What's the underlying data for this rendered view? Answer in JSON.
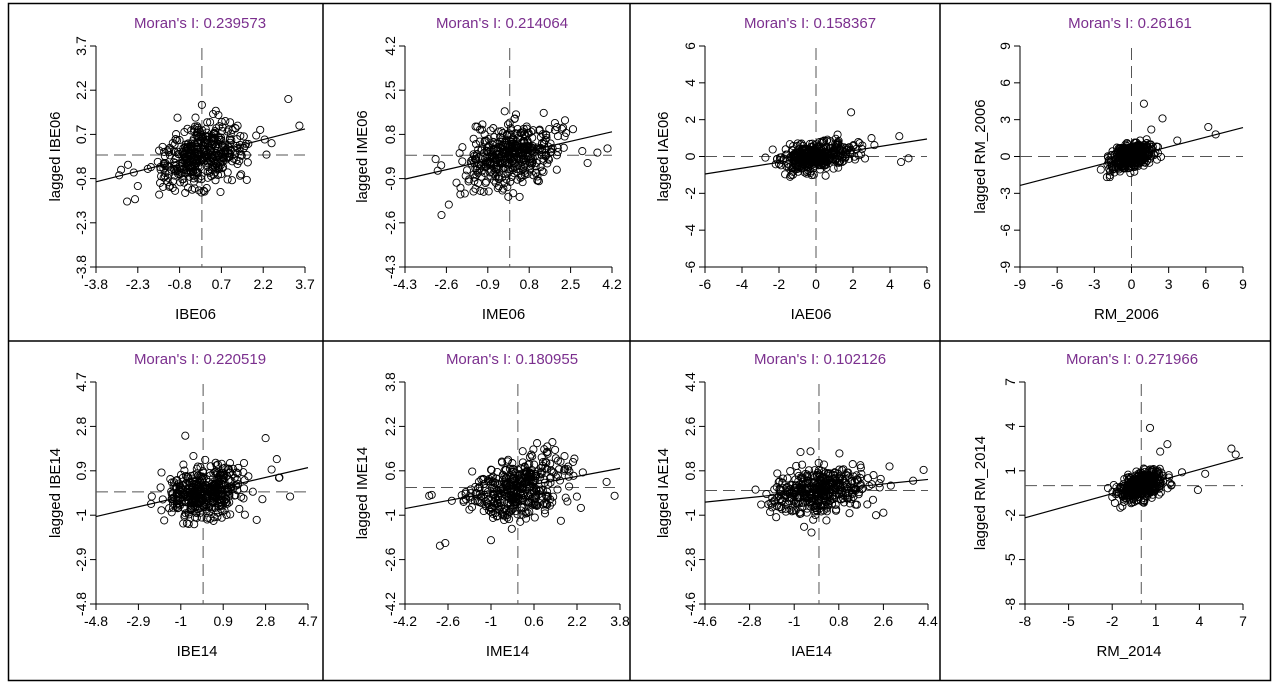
{
  "chart_data": [
    {
      "type": "scatter",
      "title": "Moran's I: 0.239573",
      "xlabel": "IBE06",
      "ylabel": "lagged IBE06",
      "xlim": [
        -3.8,
        3.7
      ],
      "ylim": [
        -3.8,
        3.7
      ],
      "xticks": [
        "-3.8",
        "-2.3",
        "-0.8",
        "0.7",
        "2.2",
        "3.7"
      ],
      "yticks": [
        "-3.8",
        "-2.3",
        "-0.8",
        "0.7",
        "2.2",
        "3.7"
      ],
      "slope": 0.239573,
      "spread": [
        0.8,
        0.5
      ],
      "outliers": [
        [
          -2.9,
          -0.5
        ],
        [
          -2.4,
          -1.5
        ],
        [
          0.0,
          1.7
        ],
        [
          0.5,
          1.5
        ],
        [
          3.1,
          1.9
        ],
        [
          2.5,
          0.4
        ],
        [
          3.5,
          1.0
        ]
      ],
      "color_title": "#7b2f8e"
    },
    {
      "type": "scatter",
      "title": "Moran's I: 0.214064",
      "xlabel": "IME06",
      "ylabel": "lagged IME06",
      "xlim": [
        -4.3,
        4.2
      ],
      "ylim": [
        -4.3,
        4.2
      ],
      "xticks": [
        "-4.3",
        "-2.6",
        "-0.9",
        "0.8",
        "2.5",
        "4.2"
      ],
      "yticks": [
        "-4.3",
        "-2.6",
        "-0.9",
        "0.8",
        "2.5",
        "4.2"
      ],
      "slope": 0.214064,
      "spread": [
        1.0,
        0.6
      ],
      "outliers": [
        [
          -2.8,
          -2.3
        ],
        [
          -2.5,
          -1.9
        ],
        [
          -1.4,
          1.1
        ],
        [
          2.6,
          1.0
        ],
        [
          3.2,
          -0.3
        ],
        [
          3.6,
          0.1
        ],
        [
          1.2,
          -1.0
        ]
      ],
      "color_title": "#7b2f8e"
    },
    {
      "type": "scatter",
      "title": "Moran's I: 0.158367",
      "xlabel": "IAE06",
      "ylabel": "lagged IAE06",
      "xlim": [
        -6,
        6
      ],
      "ylim": [
        -6,
        6
      ],
      "xticks": [
        "-6",
        "-4",
        "-2",
        "0",
        "2",
        "4",
        "6"
      ],
      "yticks": [
        "-6",
        "-4",
        "-2",
        "0",
        "2",
        "4",
        "6"
      ],
      "slope": 0.158367,
      "spread": [
        0.9,
        0.35
      ],
      "outliers": [
        [
          1.9,
          2.4
        ],
        [
          3.0,
          1.0
        ],
        [
          4.5,
          1.1
        ],
        [
          4.6,
          -0.3
        ],
        [
          5.0,
          -0.1
        ],
        [
          -1.4,
          -1.1
        ],
        [
          2.5,
          0.6
        ]
      ],
      "color_title": "#7b2f8e"
    },
    {
      "type": "scatter",
      "title": "Moran's I: 0.26161",
      "xlabel": "RM_2006",
      "ylabel": "lagged RM_2006",
      "xlim": [
        -9,
        9
      ],
      "ylim": [
        -9,
        9
      ],
      "xticks": [
        "-9",
        "-6",
        "-3",
        "0",
        "3",
        "6",
        "9"
      ],
      "yticks": [
        "-9",
        "-6",
        "-3",
        "0",
        "3",
        "6",
        "9"
      ],
      "slope": 0.26161,
      "spread": [
        0.8,
        0.5
      ],
      "outliers": [
        [
          1.0,
          4.3
        ],
        [
          2.5,
          3.1
        ],
        [
          1.6,
          2.2
        ],
        [
          3.7,
          1.3
        ],
        [
          6.2,
          2.4
        ],
        [
          6.8,
          1.8
        ],
        [
          -1.8,
          -1.0
        ]
      ],
      "color_title": "#7b2f8e"
    },
    {
      "type": "scatter",
      "title": "Moran's I: 0.220519",
      "xlabel": "IBE14",
      "ylabel": "lagged IBE14",
      "xlim": [
        -4.8,
        4.7
      ],
      "ylim": [
        -4.8,
        4.7
      ],
      "xticks": [
        "-4.8",
        "-2.9",
        "-1",
        "0.9",
        "2.8",
        "4.7"
      ],
      "yticks": [
        "-4.8",
        "-2.9",
        "-1",
        "0.9",
        "2.8",
        "4.7"
      ],
      "slope": 0.220519,
      "spread": [
        0.9,
        0.55
      ],
      "outliers": [
        [
          -0.8,
          2.4
        ],
        [
          2.8,
          2.3
        ],
        [
          3.4,
          0.6
        ],
        [
          3.9,
          -0.2
        ],
        [
          -2.3,
          -0.2
        ],
        [
          2.4,
          -1.2
        ],
        [
          3.3,
          1.4
        ]
      ],
      "color_title": "#7b2f8e"
    },
    {
      "type": "scatter",
      "title": "Moran's I: 0.180955",
      "xlabel": "IME14",
      "ylabel": "lagged IME14",
      "xlim": [
        -4.2,
        3.8
      ],
      "ylim": [
        -4.2,
        3.8
      ],
      "xticks": [
        "-4.2",
        "-2.6",
        "-1",
        "0.6",
        "2.2",
        "3.8"
      ],
      "yticks": [
        "-4.2",
        "-2.6",
        "-1",
        "0.6",
        "2.2",
        "3.8"
      ],
      "slope": 0.180955,
      "spread": [
        0.95,
        0.55
      ],
      "outliers": [
        [
          -3.3,
          -0.3
        ],
        [
          -2.9,
          -2.1
        ],
        [
          -2.7,
          -2.0
        ],
        [
          -1.0,
          -1.9
        ],
        [
          3.3,
          0.2
        ],
        [
          3.6,
          -0.3
        ],
        [
          1.6,
          -1.2
        ]
      ],
      "color_title": "#7b2f8e"
    },
    {
      "type": "scatter",
      "title": "Moran's I: 0.102126",
      "xlabel": "IAE14",
      "ylabel": "lagged IAE14",
      "xlim": [
        -4.6,
        4.4
      ],
      "ylim": [
        -4.6,
        4.4
      ],
      "xticks": [
        "-4.6",
        "-2.8",
        "-1",
        "0.8",
        "2.6",
        "4.4"
      ],
      "yticks": [
        "-4.6",
        "-2.8",
        "-1",
        "0.8",
        "2.6",
        "4.4"
      ],
      "slope": 0.102126,
      "spread": [
        0.95,
        0.45
      ],
      "outliers": [
        [
          -0.3,
          -1.7
        ],
        [
          2.3,
          -1.0
        ],
        [
          2.6,
          -0.9
        ],
        [
          3.8,
          0.4
        ],
        [
          -1.8,
          -0.4
        ],
        [
          2.9,
          0.2
        ]
      ],
      "color_title": "#7b2f8e"
    },
    {
      "type": "scatter",
      "title": "Moran's I: 0.271966",
      "xlabel": "RM_2014",
      "ylabel": "lagged RM_2014",
      "xlim": [
        -8,
        7
      ],
      "ylim": [
        -8,
        7
      ],
      "xticks": [
        "-8",
        "-5",
        "-2",
        "1",
        "4",
        "7"
      ],
      "yticks": [
        "-8",
        "-5",
        "-2",
        "1",
        "4",
        "7"
      ],
      "slope": 0.271966,
      "spread": [
        0.75,
        0.45
      ],
      "outliers": [
        [
          0.6,
          3.9
        ],
        [
          1.8,
          2.8
        ],
        [
          1.3,
          2.3
        ],
        [
          2.8,
          0.9
        ],
        [
          3.9,
          -0.3
        ],
        [
          4.4,
          0.8
        ],
        [
          6.2,
          2.5
        ],
        [
          6.5,
          2.1
        ],
        [
          -1.3,
          -1.4
        ]
      ],
      "color_title": "#7b2f8e"
    }
  ]
}
